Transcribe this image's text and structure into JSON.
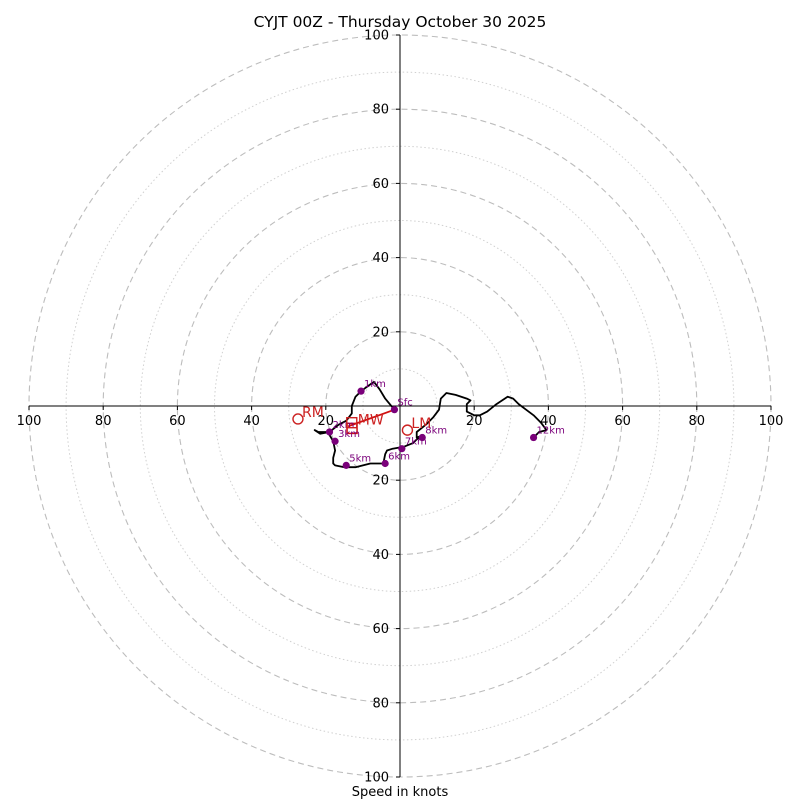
{
  "chart_data": {
    "type": "hodograph",
    "title": "CYJT 00Z - Thursday October 30 2025",
    "xlabel": "Speed in knots",
    "ylabel": "",
    "xlim": [
      -100,
      100
    ],
    "ylim": [
      -100,
      100
    ],
    "ring_major_step": 20,
    "ring_minor_step": 10,
    "ticks": [
      -100,
      -80,
      -60,
      -40,
      -20,
      20,
      40,
      60,
      80,
      100
    ],
    "tick_labels": [
      "100",
      "80",
      "60",
      "40",
      "20",
      "20",
      "40",
      "60",
      "80",
      "100"
    ],
    "hodograph": [
      [
        -1.5,
        -1
      ],
      [
        -4,
        2
      ],
      [
        -5.5,
        4.5
      ],
      [
        -7,
        6.5
      ],
      [
        -8.5,
        5.5
      ],
      [
        -10.5,
        4
      ],
      [
        -12,
        2.5
      ],
      [
        -13,
        0
      ],
      [
        -13,
        -2
      ],
      [
        -14.5,
        -4
      ],
      [
        -16.5,
        -5
      ],
      [
        -19,
        -7
      ],
      [
        -21.5,
        -7.5
      ],
      [
        -23,
        -6.5
      ],
      [
        -22,
        -7
      ],
      [
        -19.5,
        -7
      ],
      [
        -18,
        -9.5
      ],
      [
        -17.5,
        -12
      ],
      [
        -18,
        -14
      ],
      [
        -18,
        -15.5
      ],
      [
        -17.5,
        -16
      ],
      [
        -15,
        -16.5
      ],
      [
        -12,
        -16.5
      ],
      [
        -8,
        -15.5
      ],
      [
        -6,
        -15.5
      ],
      [
        -4.5,
        -15.5
      ],
      [
        -4,
        -13
      ],
      [
        -3.5,
        -12
      ],
      [
        -2,
        -11.5
      ],
      [
        1,
        -11
      ],
      [
        3.5,
        -10
      ],
      [
        4.5,
        -9
      ],
      [
        6,
        -8
      ],
      [
        4.5,
        -8.5
      ],
      [
        4.5,
        -7
      ],
      [
        7,
        -5
      ],
      [
        9,
        -3
      ],
      [
        10.5,
        -1
      ],
      [
        11,
        2
      ],
      [
        12.5,
        3.5
      ],
      [
        15,
        3
      ],
      [
        18,
        2
      ],
      [
        19,
        1.5
      ],
      [
        18,
        0.5
      ],
      [
        18,
        -1.5
      ],
      [
        20,
        -2.5
      ],
      [
        21.5,
        -2.5
      ],
      [
        23.5,
        -1.5
      ],
      [
        26,
        0.5
      ],
      [
        29,
        2.5
      ],
      [
        30.5,
        2
      ],
      [
        32,
        0.5
      ],
      [
        34,
        -1
      ],
      [
        36,
        -2.5
      ],
      [
        38,
        -4.5
      ],
      [
        39.5,
        -6.5
      ],
      [
        37.5,
        -7
      ],
      [
        36,
        -8.5
      ]
    ],
    "height_markers": [
      {
        "label": "Sfc",
        "u": -1.5,
        "v": -1
      },
      {
        "label": "1km",
        "u": -10.5,
        "v": 4
      },
      {
        "label": "2km",
        "u": -19,
        "v": -7
      },
      {
        "label": "3km",
        "u": -17.5,
        "v": -9.5
      },
      {
        "label": "5km",
        "u": -14.5,
        "v": -16
      },
      {
        "label": "6km",
        "u": -4,
        "v": -15.5
      },
      {
        "label": "7km",
        "u": 0.5,
        "v": -11.5
      },
      {
        "label": "8km",
        "u": 6,
        "v": -8.5
      },
      {
        "label": "12km",
        "u": 36,
        "v": -8.5
      }
    ],
    "shear_vector": [
      [
        -1.5,
        -1
      ],
      [
        -14,
        -5.5
      ]
    ],
    "storm_motion": [
      {
        "label": "RM",
        "u": -27.5,
        "v": -3.5
      },
      {
        "label": "LM",
        "u": 2,
        "v": -6.5
      },
      {
        "label": "MW",
        "u": -13,
        "v": -4.5
      }
    ],
    "colors": {
      "hodograph": "#000000",
      "markers": "#7a007a",
      "shear": "#d01010",
      "storm_motion": "#cc2222",
      "rings": "#bdbdbd"
    }
  }
}
